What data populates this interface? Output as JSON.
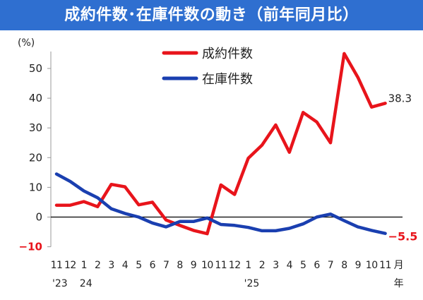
{
  "header": {
    "title": "成約件数･在庫件数の動き（前年同月比）",
    "bg_color": "#2f6fd0",
    "text_color": "#ffffff"
  },
  "chart_data": {
    "type": "line",
    "title": "成約件数･在庫件数の動き（前年同月比）",
    "unit_label": "(%)",
    "xlabel": "月",
    "x_unit_second_line": "年",
    "ylim": [
      -10,
      55
    ],
    "yticks": [
      -10,
      0,
      10,
      20,
      30,
      40,
      50
    ],
    "ytick_labels": [
      "−10",
      "0",
      "10",
      "20",
      "30",
      "40",
      "50"
    ],
    "x_month_labels": [
      "11",
      "12",
      "1",
      "2",
      "3",
      "4",
      "5",
      "6",
      "7",
      "8",
      "9",
      "10",
      "11",
      "12",
      "1",
      "2",
      "3",
      "4",
      "5",
      "6",
      "7",
      "8",
      "9",
      "10",
      "11"
    ],
    "x_year_labels": [
      {
        "index": 0,
        "text": "'23"
      },
      {
        "index": 2,
        "text": "24"
      },
      {
        "index": 14,
        "text": "'25"
      }
    ],
    "zero_line": true,
    "grid": false,
    "legend_position": "top-center",
    "series": [
      {
        "name": "成約件数",
        "color": "#e8141b",
        "values": [
          4.0,
          4.0,
          5.2,
          3.5,
          11.0,
          10.2,
          4.1,
          5.0,
          -1.0,
          -2.8,
          -4.5,
          -5.6,
          10.8,
          7.6,
          19.8,
          24.2,
          31.0,
          21.8,
          35.2,
          32.0,
          25.0,
          55.0,
          47.0,
          37.0,
          38.3
        ],
        "end_label": "38.3"
      },
      {
        "name": "在庫件数",
        "color": "#1a3fb0",
        "values": [
          14.5,
          12.0,
          8.8,
          6.5,
          2.8,
          1.2,
          0.0,
          -2.0,
          -3.3,
          -1.5,
          -1.5,
          -0.3,
          -2.5,
          -2.8,
          -3.5,
          -4.6,
          -4.6,
          -3.8,
          -2.3,
          0.0,
          1.0,
          -1.2,
          -3.3,
          -4.5,
          -5.5
        ],
        "end_label": "−5.5"
      }
    ]
  }
}
